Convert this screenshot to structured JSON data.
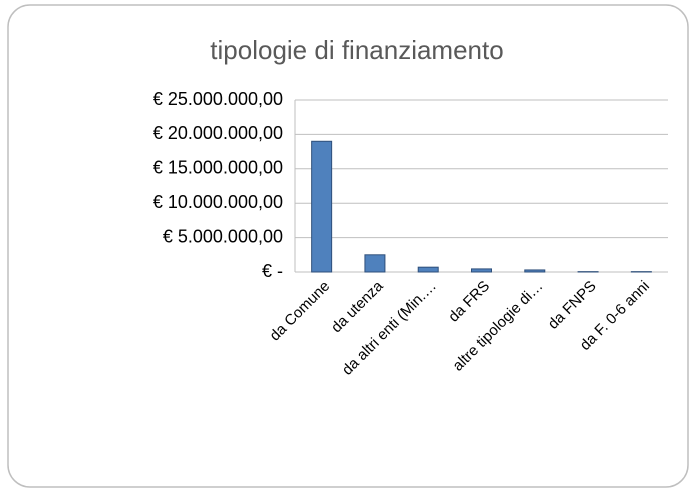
{
  "chart_data": {
    "type": "bar",
    "title": "tipologie di finanziamento",
    "categories": [
      "da Comune",
      "da utenza",
      "da altri enti (Min.…",
      "da FRS",
      "altre tipologie di…",
      "da FNPS",
      "da F. 0-6 anni"
    ],
    "values": [
      19000000,
      2500000,
      700000,
      450000,
      300000,
      50000,
      50000
    ],
    "color": "#4f81bd",
    "ylim": [
      0,
      25000000
    ],
    "yticks": [
      {
        "value": 0,
        "label": "€ -"
      },
      {
        "value": 5000000,
        "label": "€ 5.000.000,00"
      },
      {
        "value": 10000000,
        "label": "€ 10.000.000,00"
      },
      {
        "value": 15000000,
        "label": "€ 15.000.000,00"
      },
      {
        "value": 20000000,
        "label": "€ 20.000.000,00"
      },
      {
        "value": 25000000,
        "label": "€ 25.000.000,00"
      }
    ],
    "grid": true
  }
}
